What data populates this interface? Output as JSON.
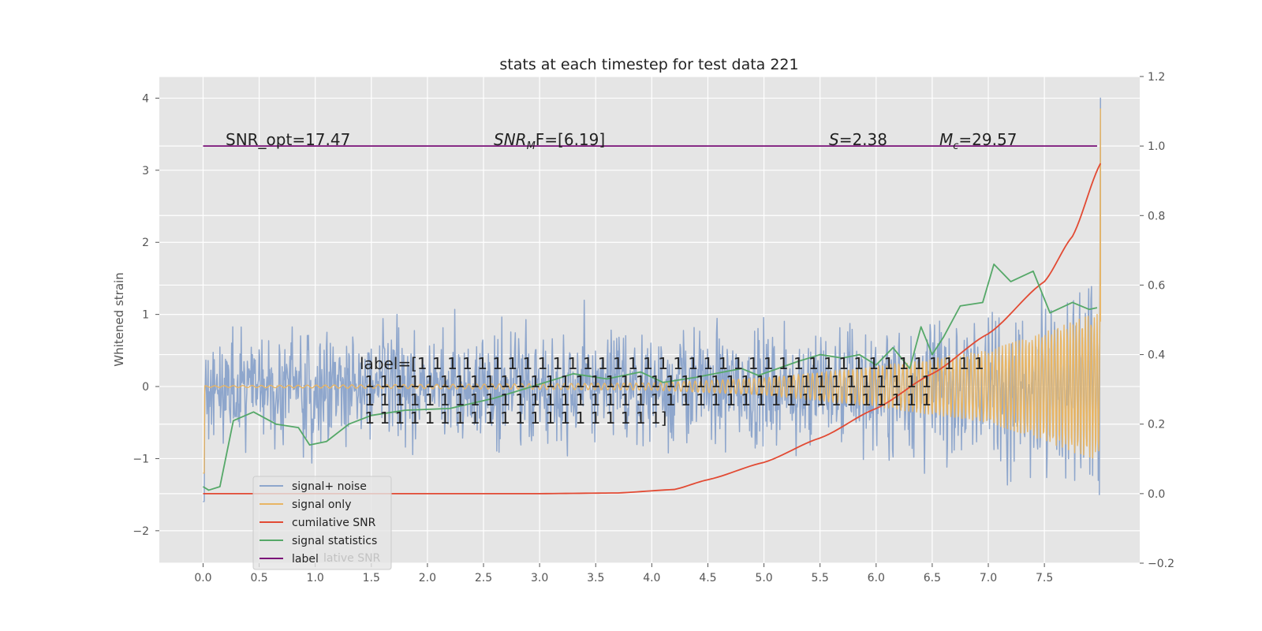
{
  "chart_data": {
    "type": "line",
    "title": "stats at each timestep for test data 221",
    "ylabel": "Whitened strain",
    "xlim": [
      -0.39,
      8.35
    ],
    "ylim": [
      -2.45,
      4.3
    ],
    "y2lim": [
      -0.2,
      1.2
    ],
    "xticks": [
      "0.0",
      "0.5",
      "1.0",
      "1.5",
      "2.0",
      "2.5",
      "3.0",
      "3.5",
      "4.0",
      "4.5",
      "5.0",
      "5.5",
      "6.0",
      "6.5",
      "7.0",
      "7.5"
    ],
    "yticks": [
      "−2",
      "−1",
      "0",
      "1",
      "2",
      "3",
      "4"
    ],
    "y2ticks": [
      "−0.2",
      "0.0",
      "0.2",
      "0.4",
      "0.6",
      "0.8",
      "1.0",
      "1.2"
    ],
    "grid": true,
    "legend_position": "lower-left",
    "series": [
      {
        "name": "signal+ noise",
        "axis": "left",
        "color": "#8EA6CC",
        "description": "noisy whitened strain, roughly ±1 amplitude with spikes to ±1.7, final spike to 4.0 at t≈8.0"
      },
      {
        "name": "signal only",
        "axis": "left",
        "color": "#E8B564",
        "amplitude_envelope": {
          "t": [
            0.0,
            4.0,
            5.0,
            6.0,
            7.0,
            7.5,
            7.9
          ],
          "amp": [
            0.01,
            0.05,
            0.12,
            0.28,
            0.5,
            0.75,
            1.0
          ]
        },
        "final_peak": 3.85
      },
      {
        "name": "cumilative SNR",
        "axis": "right",
        "color": "#E24A33",
        "t": [
          0.0,
          3.0,
          3.7,
          4.2,
          4.5,
          5.0,
          5.5,
          6.0,
          6.5,
          7.0,
          7.5,
          7.75,
          8.0
        ],
        "values": [
          0.0,
          0.0,
          0.002,
          0.012,
          0.04,
          0.09,
          0.16,
          0.245,
          0.345,
          0.46,
          0.61,
          0.74,
          0.95
        ]
      },
      {
        "name": "signal statistics",
        "axis": "right",
        "color": "#55A868",
        "t": [
          0.0,
          0.05,
          0.15,
          0.27,
          0.45,
          0.65,
          0.85,
          0.95,
          1.1,
          1.3,
          1.5,
          1.8,
          2.2,
          2.6,
          2.95,
          3.3,
          3.6,
          3.9,
          4.1,
          4.4,
          4.8,
          4.95,
          5.3,
          5.5,
          5.7,
          5.85,
          6.0,
          6.15,
          6.3,
          6.4,
          6.5,
          6.6,
          6.75,
          6.95,
          7.05,
          7.2,
          7.4,
          7.55,
          7.75,
          7.9,
          7.97
        ],
        "values": [
          0.02,
          0.01,
          0.02,
          0.21,
          0.235,
          0.2,
          0.19,
          0.14,
          0.15,
          0.2,
          0.225,
          0.24,
          0.245,
          0.275,
          0.31,
          0.345,
          0.33,
          0.35,
          0.32,
          0.335,
          0.36,
          0.34,
          0.38,
          0.4,
          0.39,
          0.4,
          0.37,
          0.42,
          0.36,
          0.48,
          0.4,
          0.45,
          0.54,
          0.55,
          0.66,
          0.61,
          0.64,
          0.52,
          0.55,
          0.53,
          0.535
        ]
      },
      {
        "name": "label",
        "axis": "right",
        "color": "#7A1278",
        "t": [
          0.0,
          7.97
        ],
        "values": [
          1.0,
          1.0
        ]
      }
    ],
    "legend_entries": [
      "signal+ noise",
      "signal only",
      "cumilative SNR",
      "signal statistics",
      "label"
    ],
    "legend_ghost_text": "lative SNR",
    "annotations": [
      {
        "text": "SNR_opt=17.47"
      },
      {
        "text": "SNR_MF=[6.19]",
        "rendered": {
          "base": "SNR",
          "sub": "M",
          "rest": "F=[6.19]"
        }
      },
      {
        "text": "S=2.38",
        "rendered": {
          "italic": "S",
          "rest": "=2.38"
        }
      },
      {
        "text": "M_c=29.57",
        "rendered": {
          "base": "M",
          "sub": "c",
          "rest": "=29.57"
        }
      }
    ],
    "label_text_lines": [
      "label=[1 1 1 1 1 1 1 1 1 1 1 1 1 1 1 1 1 1 1 1 1 1 1 1 1 1 1 1 1 1 1 1 1 1 1 1 1 1",
      " 1 1 1 1 1 1 1 1 1 1 1 1 1 1 1 1 1 1 1 1 1 1 1 1 1 1 1 1 1 1 1 1 1 1 1 1 1 1",
      " 1 1 1 1 1 1 1 1 1 1 1 1 1 1 1 1 1 1 1 1 1 1 1 1 1 1 1 1 1 1 1 1 1 1 1 1 1 1",
      " 1 1 1 1 1 1 1 1 1 1 1 1 1 1 1 1 1 1 1 1]"
    ]
  }
}
